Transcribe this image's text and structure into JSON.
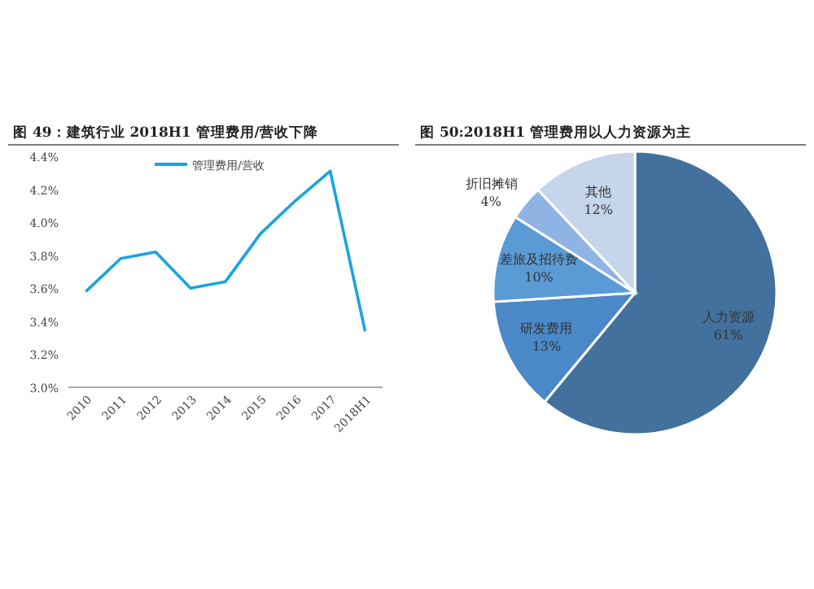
{
  "chart_data": [
    {
      "type": "line",
      "title": "图 49：建筑行业 2018H1 管理费用/营收下降",
      "categories": [
        "2010",
        "2011",
        "2012",
        "2013",
        "2014",
        "2015",
        "2016",
        "2017",
        "2018H1"
      ],
      "series": [
        {
          "name": "管理费用/营收",
          "color": "#1aa3e0",
          "values": [
            3.58,
            3.78,
            3.82,
            3.6,
            3.64,
            3.93,
            4.13,
            4.31,
            3.34
          ]
        }
      ],
      "ylim": [
        3.0,
        4.4
      ],
      "yticks": [
        {
          "value": 3.0,
          "label": "3.0%"
        },
        {
          "value": 3.2,
          "label": "3.2%"
        },
        {
          "value": 3.4,
          "label": "3.4%"
        },
        {
          "value": 3.6,
          "label": "3.6%"
        },
        {
          "value": 3.8,
          "label": "3.8%"
        },
        {
          "value": 4.0,
          "label": "4.0%"
        },
        {
          "value": 4.2,
          "label": "4.2%"
        },
        {
          "value": 4.4,
          "label": "4.4%"
        }
      ],
      "legend": "top",
      "marker": "none",
      "line_style": "solid"
    },
    {
      "type": "pie",
      "title": "图 50:2018H1 管理费用以人力资源为主",
      "categories": [
        "人力资源",
        "研发费用",
        "差旅及招待费",
        "折旧摊销",
        "其他"
      ],
      "values": [
        61,
        13,
        10,
        4,
        12
      ],
      "colors": [
        "#41719c",
        "#4a88c8",
        "#5b9bd5",
        "#8fb4e3",
        "#c5d5ea"
      ],
      "value_labels": [
        "61%",
        "13%",
        "10%",
        "4%",
        "12%"
      ]
    }
  ]
}
